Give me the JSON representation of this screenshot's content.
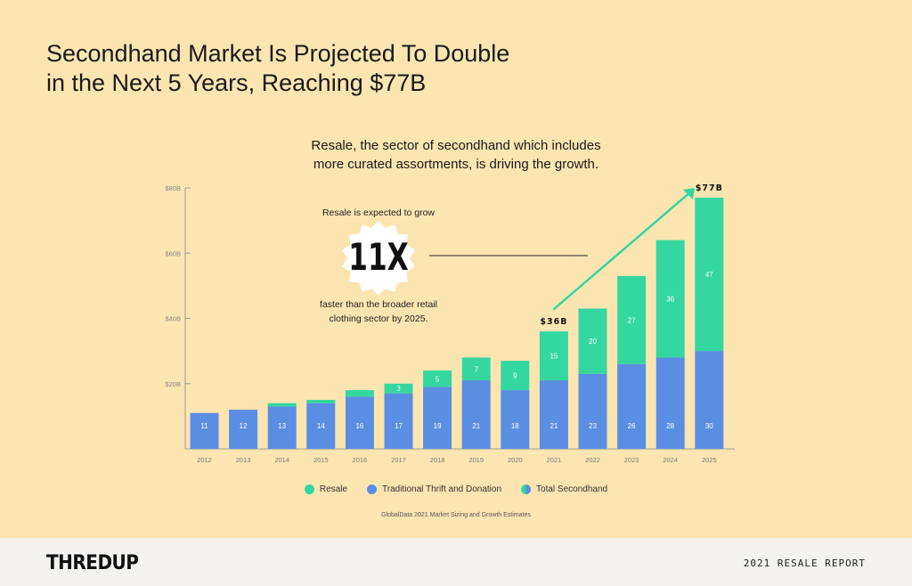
{
  "header": {
    "title": "Secondhand Market Is Projected To Double\nin the Next 5 Years, Reaching $77B",
    "subtitle": "Resale, the sector of secondhand which includes\nmore curated assortments, is driving the growth."
  },
  "colors": {
    "resale": "#34d79f",
    "thrift": "#5a8ee2",
    "background": "#fde5b1",
    "footer_bg": "#f4f3ee"
  },
  "callout": {
    "intro": "Resale is expected to grow",
    "multiplier": "11X",
    "outro_line1": "faster than the broader retail",
    "outro_line2": "clothing sector by 2025."
  },
  "chart_data": {
    "type": "bar",
    "stacked": true,
    "categories": [
      "2012",
      "2013",
      "2014",
      "2015",
      "2016",
      "2017",
      "2018",
      "2019",
      "2020",
      "2021",
      "2022",
      "2023",
      "2024",
      "2025"
    ],
    "series": [
      {
        "name": "Traditional Thrift and Donation",
        "values": [
          11,
          12,
          13,
          14,
          16,
          17,
          19,
          21,
          18,
          21,
          23,
          26,
          28,
          30
        ],
        "labels": [
          "11",
          "12",
          "13",
          "14",
          "16",
          "17",
          "19",
          "21",
          "18",
          "21",
          "23",
          "26",
          "28",
          "30"
        ]
      },
      {
        "name": "Resale",
        "values": [
          0,
          0,
          1,
          1,
          2,
          3,
          5,
          7,
          9,
          15,
          20,
          27,
          36,
          47
        ],
        "labels": [
          "",
          "",
          "",
          "",
          "",
          "3",
          "5",
          "7",
          "9",
          "15",
          "20",
          "27",
          "36",
          "47"
        ]
      }
    ],
    "ylim": [
      0,
      80
    ],
    "yticks": [
      20,
      40,
      60,
      80
    ],
    "ytick_labels": [
      "$20B",
      "$40B",
      "$60B",
      "$80B"
    ],
    "annotations": [
      {
        "category": "2021",
        "text": "$36B"
      },
      {
        "category": "2025",
        "text": "$77B"
      }
    ],
    "legend": [
      "Resale",
      "Traditional Thrift and Donation",
      "Total Secondhand"
    ],
    "source": "GlobalData 2021 Market Sizing and Growth Estimates"
  },
  "footer": {
    "logo": "THREDUP",
    "report": "2021 RESALE REPORT"
  }
}
